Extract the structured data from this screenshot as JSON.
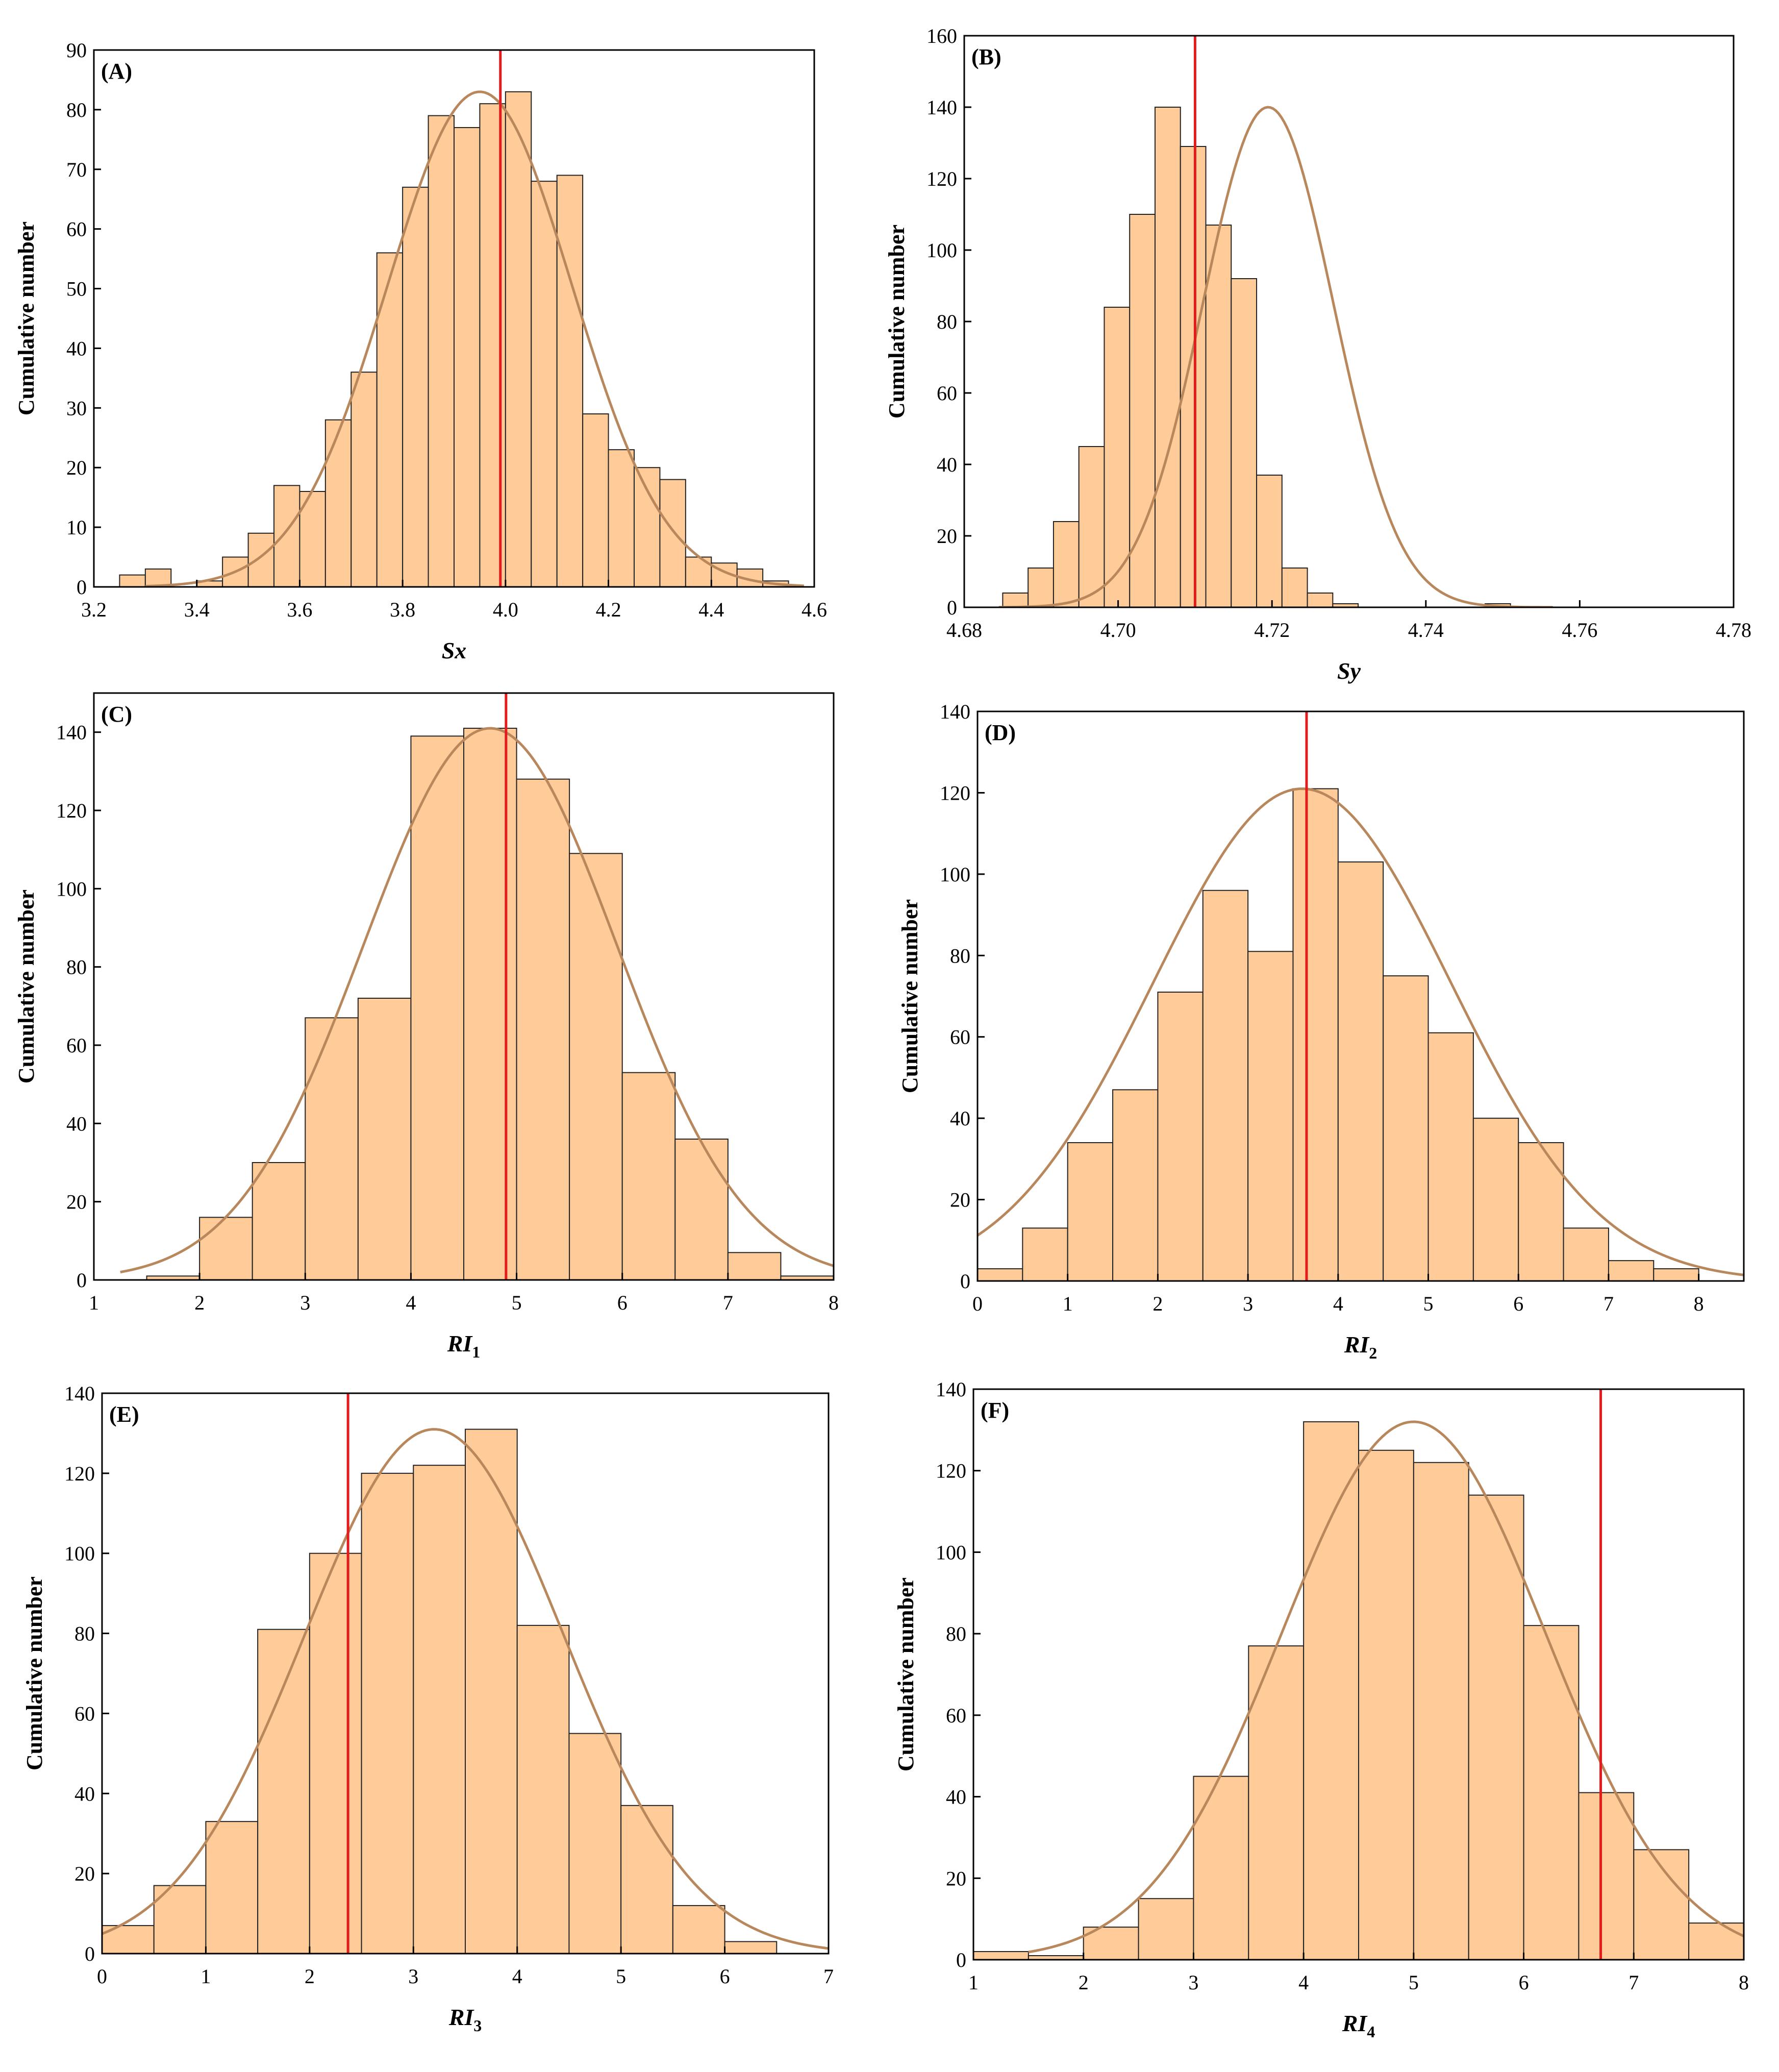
{
  "colors": {
    "bar_fill": "#FFCC99",
    "bar_stroke": "#222222",
    "fit_curve": "#B8875C",
    "marker_line": "#E41A1C",
    "axis": "#000000"
  },
  "chart_data": [
    {
      "id": "A",
      "type": "bar",
      "panel_label": "(A)",
      "xlabel": "Sx",
      "xlabel_sub": "",
      "ylabel": "Cumulative number",
      "xlim": [
        3.2,
        4.6
      ],
      "ylim": [
        0,
        90
      ],
      "xticks": [
        3.2,
        3.4,
        3.6,
        3.8,
        4.0,
        4.2,
        4.4,
        4.6
      ],
      "xtick_labels": [
        "3.2",
        "3.4",
        "3.6",
        "3.8",
        "4.0",
        "4.2",
        "4.4",
        "4.6"
      ],
      "yticks": [
        0,
        10,
        20,
        30,
        40,
        50,
        60,
        70,
        80,
        90
      ],
      "ytick_labels": [
        "0",
        "10",
        "20",
        "30",
        "40",
        "50",
        "60",
        "70",
        "80",
        "90"
      ],
      "bin_start": 3.25,
      "bin_width": 0.05,
      "values": [
        2,
        3,
        0,
        1,
        5,
        9,
        17,
        16,
        28,
        36,
        56,
        67,
        79,
        77,
        81,
        83,
        68,
        69,
        29,
        23,
        20,
        18,
        5,
        4,
        3,
        1
      ],
      "fit": {
        "mean": 3.95,
        "sd": 0.18,
        "peak": 83,
        "x_range": [
          3.3,
          4.58
        ]
      },
      "marker_x": 3.99
    },
    {
      "id": "B",
      "type": "bar",
      "panel_label": "(B)",
      "xlabel": "Sy",
      "xlabel_sub": "",
      "ylabel": "Cumulative number",
      "xlim": [
        4.68,
        4.78
      ],
      "ylim": [
        0,
        160
      ],
      "xticks": [
        4.68,
        4.7,
        4.72,
        4.74,
        4.76,
        4.78
      ],
      "xtick_labels": [
        "4.68",
        "4.70",
        "4.72",
        "4.74",
        "4.76",
        "4.78"
      ],
      "yticks": [
        0,
        20,
        40,
        60,
        80,
        100,
        120,
        140,
        160
      ],
      "ytick_labels": [
        "0",
        "20",
        "40",
        "60",
        "80",
        "100",
        "120",
        "140",
        "160"
      ],
      "bin_start": 4.685,
      "bin_width": 0.0033,
      "values": [
        4,
        11,
        24,
        45,
        84,
        110,
        140,
        129,
        107,
        92,
        37,
        11,
        4,
        1,
        0,
        0,
        0,
        0,
        0,
        1
      ],
      "fit": {
        "mean": 4.7195,
        "sd": 0.0085,
        "peak": 140,
        "x_range": [
          4.6845,
          4.7565
        ]
      },
      "marker_x": 4.71
    },
    {
      "id": "C",
      "type": "bar",
      "panel_label": "(C)",
      "xlabel": "RI",
      "xlabel_sub": "1",
      "ylabel": "Cumulative number",
      "xlim": [
        1,
        8
      ],
      "ylim": [
        0,
        150
      ],
      "xticks": [
        1,
        2,
        3,
        4,
        5,
        6,
        7,
        8
      ],
      "xtick_labels": [
        "1",
        "2",
        "3",
        "4",
        "5",
        "6",
        "7",
        "8"
      ],
      "yticks": [
        0,
        20,
        40,
        60,
        80,
        100,
        120,
        140
      ],
      "ytick_labels": [
        "0",
        "20",
        "40",
        "60",
        "80",
        "100",
        "120",
        "140"
      ],
      "bin_start": 1.5,
      "bin_width": 0.5,
      "values": [
        1,
        16,
        30,
        67,
        72,
        139,
        141,
        128,
        109,
        53,
        36,
        7,
        1
      ],
      "fit": {
        "mean": 4.75,
        "sd": 1.2,
        "peak": 141,
        "x_range": [
          1.25,
          8
        ]
      },
      "marker_x": 4.9
    },
    {
      "id": "D",
      "type": "bar",
      "panel_label": "(D)",
      "xlabel": "RI",
      "xlabel_sub": "2",
      "ylabel": "Cumulative number",
      "xlim": [
        0,
        8.5
      ],
      "ylim": [
        0,
        140
      ],
      "xticks": [
        0,
        1,
        2,
        3,
        4,
        5,
        6,
        7,
        8
      ],
      "xtick_labels": [
        "0",
        "1",
        "2",
        "3",
        "4",
        "5",
        "6",
        "7",
        "8"
      ],
      "yticks": [
        0,
        20,
        40,
        60,
        80,
        100,
        120,
        140
      ],
      "ytick_labels": [
        "0",
        "20",
        "40",
        "60",
        "80",
        "100",
        "120",
        "140"
      ],
      "bin_start": 0,
      "bin_width": 0.5,
      "values": [
        3,
        13,
        34,
        47,
        71,
        96,
        81,
        121,
        103,
        75,
        61,
        40,
        34,
        13,
        5,
        3
      ],
      "fit": {
        "mean": 3.6,
        "sd": 1.65,
        "peak": 121,
        "x_range": [
          0,
          8.5
        ]
      },
      "marker_x": 3.65
    },
    {
      "id": "E",
      "type": "bar",
      "panel_label": "(E)",
      "xlabel": "RI",
      "xlabel_sub": "3",
      "ylabel": "Cumulative number",
      "xlim": [
        0,
        7
      ],
      "ylim": [
        0,
        140
      ],
      "xticks": [
        0,
        1,
        2,
        3,
        4,
        5,
        6,
        7
      ],
      "xtick_labels": [
        "0",
        "1",
        "2",
        "3",
        "4",
        "5",
        "6",
        "7"
      ],
      "yticks": [
        0,
        20,
        40,
        60,
        80,
        100,
        120,
        140
      ],
      "ytick_labels": [
        "0",
        "20",
        "40",
        "60",
        "80",
        "100",
        "120",
        "140"
      ],
      "bin_start": 0,
      "bin_width": 0.5,
      "values": [
        7,
        17,
        33,
        81,
        100,
        120,
        122,
        131,
        82,
        55,
        37,
        12,
        3
      ],
      "fit": {
        "mean": 3.2,
        "sd": 1.25,
        "peak": 131,
        "x_range": [
          0,
          7
        ]
      },
      "marker_x": 2.37
    },
    {
      "id": "F",
      "type": "bar",
      "panel_label": "(F)",
      "xlabel": "RI",
      "xlabel_sub": "4",
      "ylabel": "Cumulative number",
      "xlim": [
        1,
        8
      ],
      "ylim": [
        0,
        140
      ],
      "xticks": [
        1,
        2,
        3,
        4,
        5,
        6,
        7,
        8
      ],
      "xtick_labels": [
        "1",
        "2",
        "3",
        "4",
        "5",
        "6",
        "7",
        "8"
      ],
      "yticks": [
        0,
        20,
        40,
        60,
        80,
        100,
        120,
        140
      ],
      "ytick_labels": [
        "0",
        "20",
        "40",
        "60",
        "80",
        "100",
        "120",
        "140"
      ],
      "bin_start": 1,
      "bin_width": 0.5,
      "values": [
        2,
        1,
        8,
        15,
        45,
        77,
        132,
        125,
        122,
        114,
        82,
        41,
        27,
        9
      ],
      "fit": {
        "mean": 5.0,
        "sd": 1.2,
        "peak": 132,
        "x_range": [
          1.5,
          8
        ]
      },
      "marker_x": 6.7
    }
  ]
}
